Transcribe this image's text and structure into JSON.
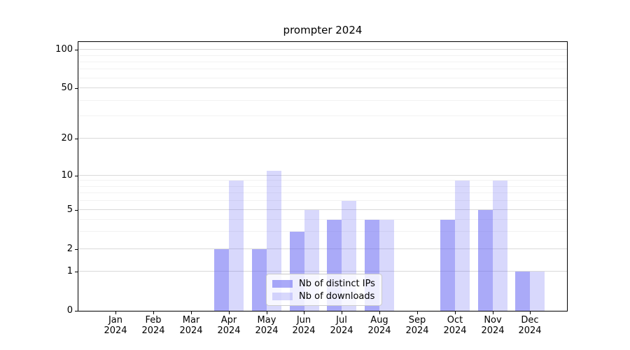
{
  "chart_data": {
    "type": "bar",
    "title": "prompter 2024",
    "categories": [
      "Jan",
      "Feb",
      "Mar",
      "Apr",
      "May",
      "Jun",
      "Jul",
      "Aug",
      "Sep",
      "Oct",
      "Nov",
      "Dec"
    ],
    "category_year": "2024",
    "series": [
      {
        "name": "Nb of distinct IPs",
        "color": "rgba(100,100,242,0.55)",
        "color_hex_on_white": "#a9a9f8",
        "values": [
          0,
          0,
          0,
          2,
          2,
          3,
          4,
          4,
          0,
          4,
          5,
          1
        ]
      },
      {
        "name": "Nb of downloads",
        "color": "rgba(100,100,242,0.25)",
        "color_hex_on_white": "#d9d9fa",
        "values": [
          0,
          0,
          0,
          9,
          11,
          5,
          6,
          4,
          0,
          9,
          9,
          1
        ]
      }
    ],
    "y_axis": {
      "scale": "log-like (asinh), 0 shown at baseline",
      "major_ticks": [
        0,
        1,
        2,
        5,
        10,
        20,
        50,
        100
      ],
      "minor_ticks": [
        3,
        4,
        6,
        7,
        8,
        9,
        30,
        40,
        60,
        70,
        80,
        90
      ],
      "ylim": [
        0,
        120
      ]
    },
    "legend": {
      "position": "inside lower-center"
    },
    "grid": true,
    "xlabel": "",
    "ylabel": ""
  },
  "colors": {
    "grid_major": "#d9d9d9",
    "grid_minor": "#f2f2f2",
    "spine": "#000000",
    "background": "#ffffff",
    "legend_border": "#cccccc"
  }
}
